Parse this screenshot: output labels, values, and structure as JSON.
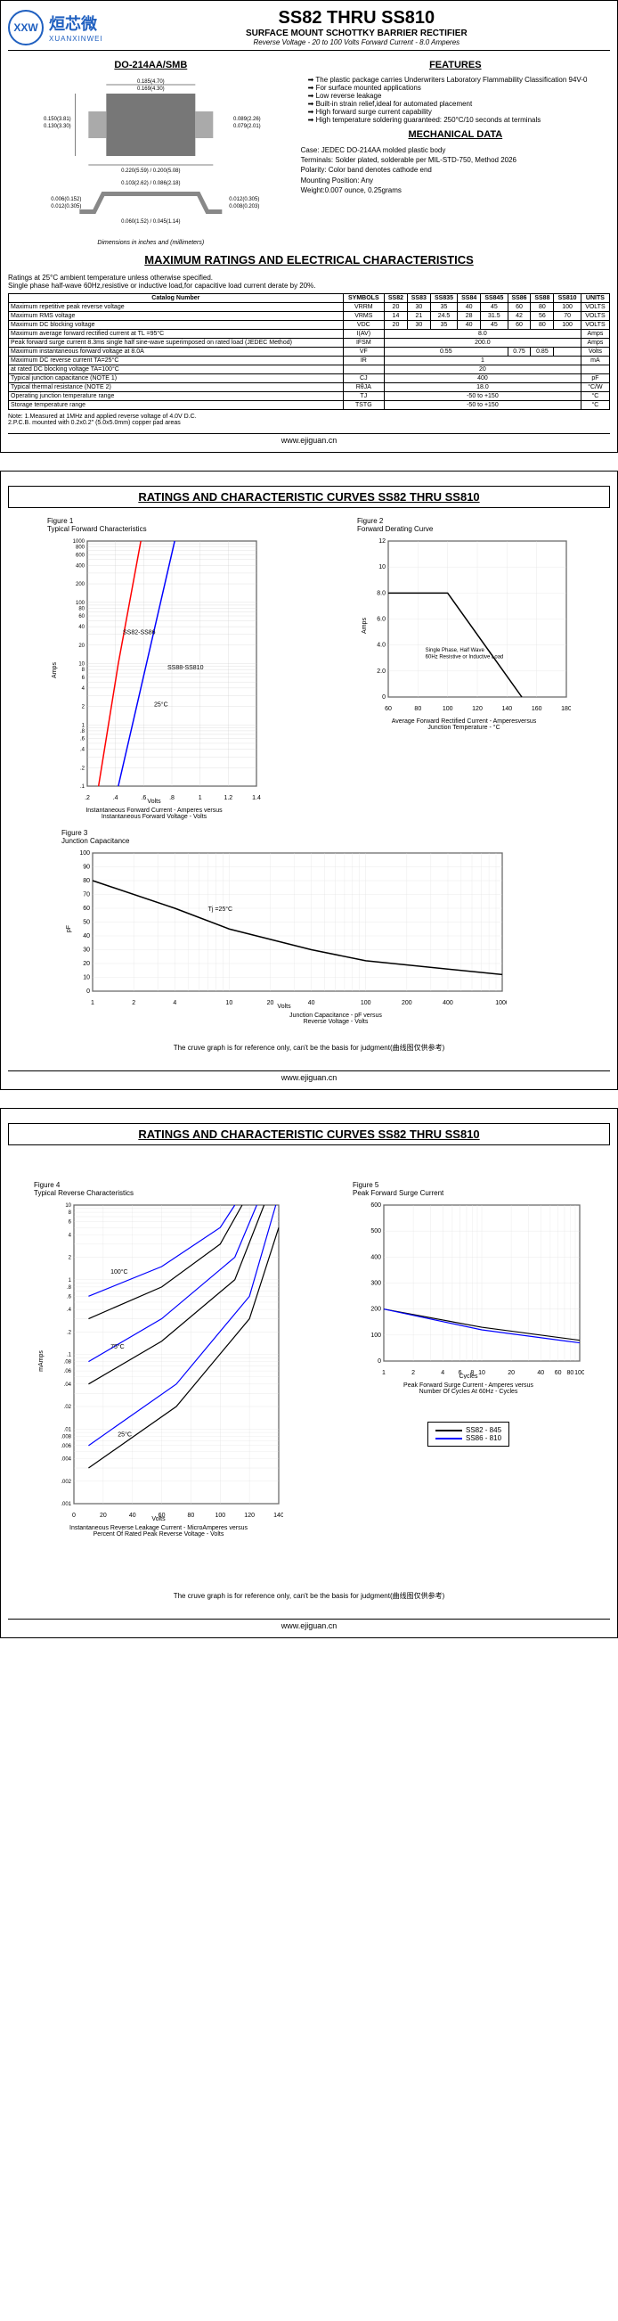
{
  "logo": {
    "abbr": "XXW",
    "cn": "烜芯微",
    "en": "XUANXINWEI"
  },
  "header": {
    "title": "SS82 THRU SS810",
    "subtitle": "SURFACE MOUNT SCHOTTKY BARRIER RECTIFIER",
    "specs": "Reverse Voltage - 20 to 100 Volts    Forward Current - 8.0 Amperes"
  },
  "package": {
    "name": "DO-214AA/SMB",
    "dim_note": "Dimensions in inches and (millimeters)"
  },
  "features": {
    "title": "FEATURES",
    "items": [
      "The plastic package carries Underwriters Laboratory Flammability Classification 94V-0",
      "For surface mounted applications",
      "Low reverse leakage",
      "Built-in strain relief,ideal for automated placement",
      "High forward surge current capability",
      "High temperature soldering guaranteed: 250°C/10 seconds at terminals"
    ]
  },
  "mechanical": {
    "title": "MECHANICAL DATA",
    "case": "Case: JEDEC DO-214AA molded plastic body",
    "terminals": "Terminals: Solder plated, solderable per MIL-STD-750, Method 2026",
    "polarity": "Polarity: Color band denotes cathode end",
    "mounting": "Mounting Position: Any",
    "weight": "Weight:0.007 ounce, 0.25grams"
  },
  "ratings": {
    "title": "MAXIMUM RATINGS AND ELECTRICAL CHARACTERISTICS",
    "intro1": "Ratings at 25°C ambient temperature unless otherwise specified.",
    "intro2": "Single phase half-wave 60Hz,resistive or inductive load,for capacitive load current derate by 20%.",
    "headers": [
      "Catalog Number",
      "SYMBOLS",
      "SS82",
      "SS83",
      "SS835",
      "SS84",
      "SS845",
      "SS86",
      "SS88",
      "SS810",
      "UNITS"
    ],
    "rows": [
      {
        "label": "Maximum repetitive peak reverse voltage",
        "sym": "VRRM",
        "v": [
          "20",
          "30",
          "35",
          "40",
          "45",
          "60",
          "80",
          "100"
        ],
        "unit": "VOLTS"
      },
      {
        "label": "Maximum RMS voltage",
        "sym": "VRMS",
        "v": [
          "14",
          "21",
          "24.5",
          "28",
          "31.5",
          "42",
          "56",
          "70"
        ],
        "unit": "VOLTS"
      },
      {
        "label": "Maximum DC blocking voltage",
        "sym": "VDC",
        "v": [
          "20",
          "30",
          "35",
          "40",
          "45",
          "60",
          "80",
          "100"
        ],
        "unit": "VOLTS"
      },
      {
        "label": "Maximum average forward rectified current at TL =95°C",
        "sym": "I(AV)",
        "span": "8.0",
        "unit": "Amps"
      },
      {
        "label": "Peak forward surge current 8.3ms single half sine-wave superimposed on rated load (JEDEC Method)",
        "sym": "IFSM",
        "span": "200.0",
        "unit": "Amps"
      },
      {
        "label": "Maximum instantaneous forward voltage at 8.0A",
        "sym": "VF",
        "v4": "0.55",
        "v67": [
          "0.75",
          "0.85"
        ],
        "unit": "Volts"
      },
      {
        "label": "Maximum DC reverse current    TA=25°C",
        "sym": "IR",
        "span": "1",
        "unit": "mA",
        "rowspan": true
      },
      {
        "label": "at rated DC blocking voltage    TA=100°C",
        "sym": "",
        "span": "20",
        "unit": ""
      },
      {
        "label": "Typical junction capacitance (NOTE 1)",
        "sym": "CJ",
        "span": "400",
        "unit": "pF"
      },
      {
        "label": "Typical thermal resistance (NOTE 2)",
        "sym": "RθJA",
        "span": "18.0",
        "unit": "°C/W"
      },
      {
        "label": "Operating junction temperature range",
        "sym": "TJ",
        "span": "-50 to +150",
        "unit": "°C"
      },
      {
        "label": "Storage temperature range",
        "sym": "TSTG",
        "span": "-50 to +150",
        "unit": "°C"
      }
    ],
    "note": "Note: 1.Measured at 1MHz and applied reverse voltage of 4.0V D.C.\n          2.P.C.B. mounted with 0.2x0.2\" (5.0x5.0mm) copper pad areas"
  },
  "footer": "www.ejiguan.cn",
  "page2": {
    "title": "RATINGS AND CHARACTERISTIC CURVES SS82 THRU SS810",
    "fig1": {
      "title": "Figure 1\nTypical Forward Characteristics",
      "xlabel": "Volts",
      "ylabel": "Amps",
      "caption": "Instantaneous Forward Current - Amperes versus\nInstantaneous Forward Voltage - Volts",
      "labels": [
        "SS82-SS86",
        "SS88-SS810",
        "25°C"
      ]
    },
    "fig2": {
      "title": "Figure 2\nForward Derating Curve",
      "xlabel": "",
      "ylabel": "Amps",
      "caption": "Average Forward Rectified Current - Amperesversus\nJunction Temperature - °C",
      "note": "Single Phase, Half Wave\n60Hz Resistive or Inductive Load"
    },
    "fig3": {
      "title": "Figure 3\nJunction Capacitance",
      "xlabel": "Volts",
      "ylabel": "pF",
      "caption": "Junction Capacitance - pF versus\nReverse Voltage - Volts",
      "label": "Tj =25°C"
    },
    "disclaimer": "The cruve graph is for reference only, can't be the basis for judgment(曲线图仅供参考)"
  },
  "page3": {
    "title": "RATINGS AND CHARACTERISTIC CURVES SS82 THRU SS810",
    "fig4": {
      "title": "Figure 4\nTypical Reverse Characteristics",
      "xlabel": "Volts",
      "ylabel": "mAmps",
      "caption": "Instantaneous Reverse Leakage Current - MicroAmperes versus\nPercent Of Rated Peak Reverse Voltage - Volts",
      "temps": [
        "100°C",
        "75°C",
        "25°C"
      ]
    },
    "fig5": {
      "title": "Figure 5\nPeak Forward Surge Current",
      "xlabel": "Cycles",
      "caption": "Peak Forward Surge Current - Amperes versus\nNumber Of Cycles At 60Hz - Cycles"
    },
    "legend": {
      "l1": "SS82 - 845",
      "l2": "SS86 - 810"
    },
    "disclaimer": "The cruve graph is for reference only, can't be the basis for judgment(曲线图仅供参考)"
  },
  "charts": {
    "fig1": {
      "xrange": [
        0.2,
        1.4
      ],
      "yrange_log": [
        0.1,
        1000
      ],
      "yticks": [
        "1000",
        "800",
        "600",
        "400",
        "200",
        "100",
        "80",
        "60",
        "40",
        "20",
        "10",
        "8",
        "6",
        "4",
        "2",
        "1",
        ".8",
        ".6",
        ".4",
        ".2",
        ".1"
      ],
      "xticks": [
        ".2",
        ".4",
        ".6",
        ".8",
        "1",
        "1.2",
        "1.4"
      ],
      "line1_color": "#ff0000",
      "line2_color": "#0000ff",
      "line1": [
        [
          0.28,
          0.1
        ],
        [
          0.35,
          1
        ],
        [
          0.42,
          10
        ],
        [
          0.5,
          100
        ],
        [
          0.58,
          1000
        ]
      ],
      "line2": [
        [
          0.42,
          0.1
        ],
        [
          0.52,
          1
        ],
        [
          0.62,
          10
        ],
        [
          0.72,
          100
        ],
        [
          0.82,
          1000
        ]
      ]
    },
    "fig2": {
      "xrange": [
        60,
        180
      ],
      "yrange": [
        0,
        12
      ],
      "xticks": [
        "60",
        "80",
        "100",
        "120",
        "140",
        "160",
        "180"
      ],
      "yticks": [
        "0",
        "2.0",
        "4.0",
        "6.0",
        "8.0",
        "10",
        "12"
      ],
      "line": [
        [
          60,
          8
        ],
        [
          100,
          8
        ],
        [
          150,
          0
        ]
      ]
    },
    "fig3": {
      "xrange_log": [
        1,
        1000
      ],
      "yrange": [
        0,
        100
      ],
      "xticks": [
        "1",
        "2",
        "4",
        "10",
        "20",
        "40",
        "100",
        "200",
        "400",
        "1000"
      ],
      "yticks": [
        "0",
        "10",
        "20",
        "30",
        "40",
        "50",
        "60",
        "70",
        "80",
        "90",
        "100"
      ],
      "line": [
        [
          1,
          80
        ],
        [
          4,
          60
        ],
        [
          10,
          45
        ],
        [
          40,
          30
        ],
        [
          100,
          22
        ],
        [
          1000,
          12
        ]
      ]
    },
    "fig4": {
      "xrange": [
        0,
        140
      ],
      "yrange_log": [
        0.001,
        10
      ],
      "xticks": [
        "0",
        "20",
        "40",
        "60",
        "80",
        "100",
        "120",
        "140"
      ],
      "yticks": [
        "10",
        "8",
        "6",
        "4",
        "2",
        "1",
        ".8",
        ".6",
        ".4",
        ".2",
        ".1",
        ".08",
        ".06",
        ".04",
        ".02",
        ".01",
        ".008",
        ".006",
        ".004",
        ".002",
        ".001"
      ],
      "c1": "#000",
      "c2": "#0000ff",
      "l100a": [
        [
          10,
          0.3
        ],
        [
          60,
          0.8
        ],
        [
          100,
          3
        ],
        [
          115,
          10
        ]
      ],
      "l100b": [
        [
          10,
          0.6
        ],
        [
          60,
          1.5
        ],
        [
          100,
          5
        ],
        [
          110,
          10
        ]
      ],
      "l75a": [
        [
          10,
          0.04
        ],
        [
          60,
          0.15
        ],
        [
          110,
          1
        ],
        [
          130,
          10
        ]
      ],
      "l75b": [
        [
          10,
          0.08
        ],
        [
          60,
          0.3
        ],
        [
          110,
          2
        ],
        [
          125,
          10
        ]
      ],
      "l25a": [
        [
          10,
          0.003
        ],
        [
          70,
          0.02
        ],
        [
          120,
          0.3
        ],
        [
          140,
          5
        ]
      ],
      "l25b": [
        [
          10,
          0.006
        ],
        [
          70,
          0.04
        ],
        [
          120,
          0.6
        ],
        [
          138,
          10
        ]
      ]
    },
    "fig5": {
      "xrange_log": [
        1,
        100
      ],
      "yrange": [
        0,
        600
      ],
      "xticks": [
        "1",
        "2",
        "4",
        "6",
        "8",
        "10",
        "20",
        "40",
        "60",
        "80",
        "100"
      ],
      "yticks": [
        "0",
        "100",
        "200",
        "300",
        "400",
        "500",
        "600"
      ],
      "l1": [
        [
          1,
          200
        ],
        [
          10,
          130
        ],
        [
          100,
          80
        ]
      ],
      "l2": [
        [
          1,
          200
        ],
        [
          10,
          120
        ],
        [
          100,
          70
        ]
      ]
    }
  }
}
